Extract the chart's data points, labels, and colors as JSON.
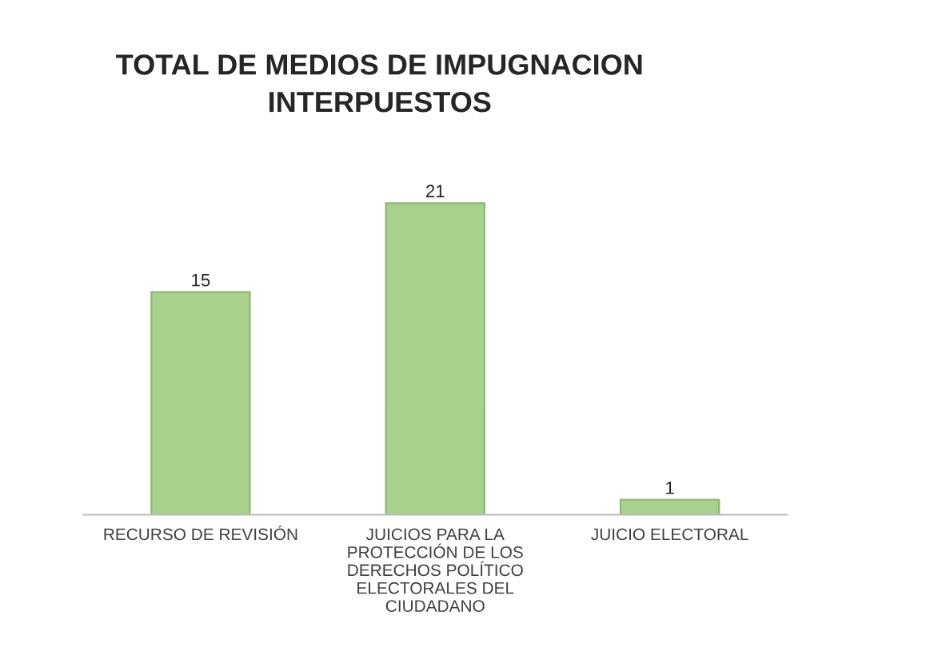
{
  "chart_data": {
    "type": "bar",
    "title": "TOTAL DE MEDIOS DE IMPUGNACION\nINTERPUESTOS",
    "categories": [
      "RECURSO DE REVISIÓN",
      "JUICIOS PARA LA\nPROTECCIÓN DE LOS\nDERECHOS POLÍTICO\nELECTORALES DEL\nCIUDADANO",
      "JUICIO ELECTORAL"
    ],
    "values": [
      15,
      21,
      1
    ],
    "color": "#a9d18e",
    "data_labels": true,
    "grid": false,
    "legend": false
  }
}
